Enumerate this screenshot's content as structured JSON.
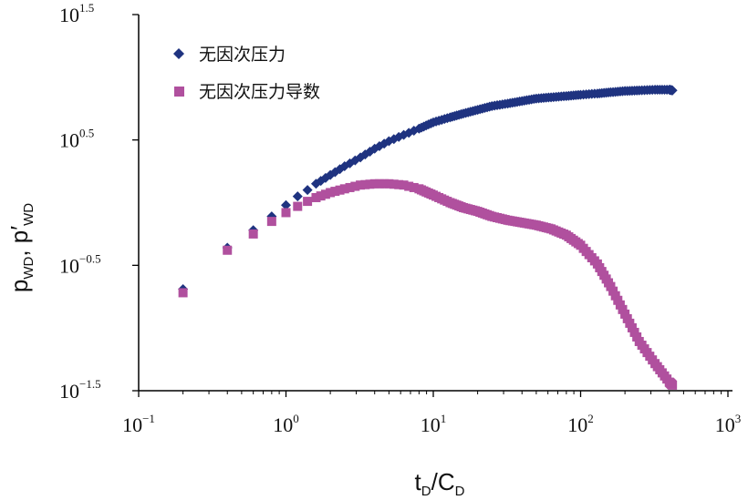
{
  "chart_data": {
    "type": "scatter",
    "title": "",
    "xscale": "log",
    "yscale": "log",
    "xlim": [
      0.1,
      1000
    ],
    "ylim": [
      0.0316,
      31.6
    ],
    "x_ticks": [
      {
        "base": "10",
        "exp": "−1",
        "value": 0.1
      },
      {
        "base": "10",
        "exp": "0",
        "value": 1
      },
      {
        "base": "10",
        "exp": "1",
        "value": 10
      },
      {
        "base": "10",
        "exp": "2",
        "value": 100
      },
      {
        "base": "10",
        "exp": "3",
        "value": 1000
      }
    ],
    "y_ticks": [
      {
        "base": "10",
        "exp": "−1.5",
        "value": 0.0316
      },
      {
        "base": "10",
        "exp": "−0.5",
        "value": 0.316
      },
      {
        "base": "10",
        "exp": "0.5",
        "value": 3.16
      },
      {
        "base": "10",
        "exp": "1.5",
        "value": 31.6
      }
    ],
    "xlabel": {
      "main": "t",
      "sub1": "D",
      "slash": "/C",
      "sub2": "D"
    },
    "ylabel": {
      "p1": "p",
      "sub1": "WD",
      "comma": ", p′",
      "sub2": "WD"
    },
    "legend_position": "top-left",
    "series": [
      {
        "name": "无因次压力",
        "marker": "diamond",
        "color": "#1f3380",
        "x": [
          0.2,
          0.4,
          0.6,
          0.8,
          1.0,
          1.2,
          1.4,
          1.6,
          2.0,
          2.5,
          3.2,
          4.0,
          5.0,
          6.3,
          8.0,
          10,
          13,
          16,
          20,
          25,
          32,
          40,
          50,
          63,
          80,
          100,
          130,
          160,
          200,
          250,
          320,
          400,
          420
        ],
        "y": [
          0.204,
          0.437,
          0.603,
          0.776,
          0.955,
          1.122,
          1.259,
          1.413,
          1.66,
          1.95,
          2.291,
          2.692,
          3.09,
          3.467,
          3.89,
          4.365,
          4.786,
          5.128,
          5.495,
          5.888,
          6.166,
          6.457,
          6.761,
          6.918,
          7.079,
          7.244,
          7.413,
          7.586,
          7.762,
          7.852,
          7.943,
          7.943,
          7.852
        ]
      },
      {
        "name": "无因次压力导数",
        "marker": "square",
        "color": "#b0509e",
        "x": [
          0.2,
          0.4,
          0.6,
          0.8,
          1.0,
          1.2,
          1.4,
          1.6,
          2.0,
          2.5,
          3.2,
          4.0,
          5.0,
          6.3,
          8.0,
          10,
          13,
          16,
          20,
          25,
          32,
          40,
          50,
          63,
          80,
          100,
          130,
          160,
          200,
          250,
          320,
          400,
          420
        ],
        "y": [
          0.191,
          0.417,
          0.562,
          0.708,
          0.832,
          0.933,
          1.023,
          1.096,
          1.202,
          1.288,
          1.38,
          1.413,
          1.413,
          1.38,
          1.288,
          1.148,
          1.0,
          0.912,
          0.851,
          0.776,
          0.724,
          0.692,
          0.661,
          0.617,
          0.55,
          0.457,
          0.324,
          0.214,
          0.129,
          0.078,
          0.052,
          0.037,
          0.035
        ]
      }
    ]
  }
}
